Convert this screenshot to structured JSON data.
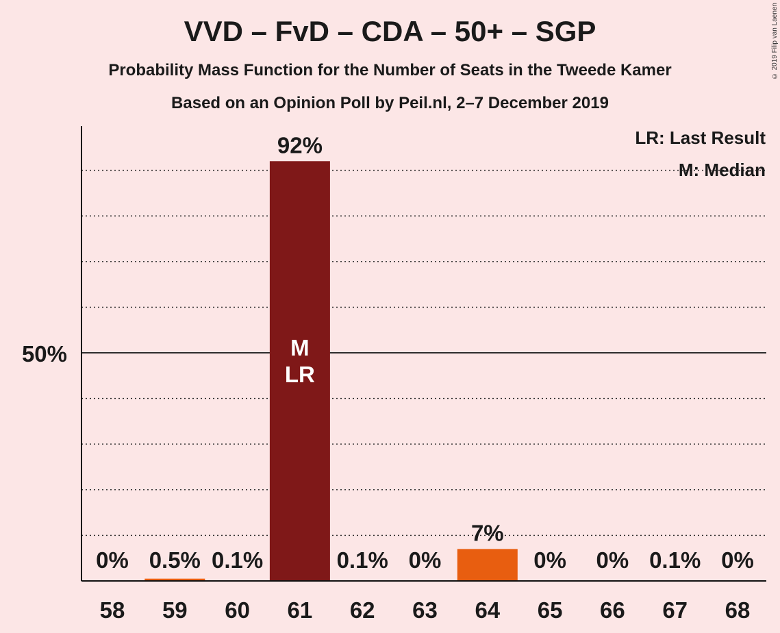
{
  "title": "VVD – FvD – CDA – 50+ – SGP",
  "subtitle": "Probability Mass Function for the Number of Seats in the Tweede Kamer",
  "subtitle2": "Based on an Opinion Poll by Peil.nl, 2–7 December 2019",
  "copyright": "© 2019 Filip van Laenen",
  "legend": {
    "last_result": "LR: Last Result",
    "median": "M: Median"
  },
  "colors": {
    "background": "#FCE6E6",
    "bar_main": "#7F1818",
    "bar_other": "#E85E10",
    "text": "#1a1a1a"
  },
  "chart_data": {
    "type": "bar",
    "categories": [
      "58",
      "59",
      "60",
      "61",
      "62",
      "63",
      "64",
      "65",
      "66",
      "67",
      "68"
    ],
    "values": [
      0,
      0.5,
      0.1,
      92,
      0.1,
      0,
      7,
      0,
      0,
      0.1,
      0
    ],
    "labels": [
      "0%",
      "0.5%",
      "0.1%",
      "92%",
      "0.1%",
      "0%",
      "7%",
      "0%",
      "0%",
      "0.1%",
      "0%"
    ],
    "ylabel_tick": "50%",
    "ylim": [
      0,
      100
    ],
    "median_index": 3,
    "last_result_index": 3,
    "bar_label_median": "M",
    "bar_label_last_result": "LR",
    "grid": "dotted every 10%, solid at 50%"
  }
}
